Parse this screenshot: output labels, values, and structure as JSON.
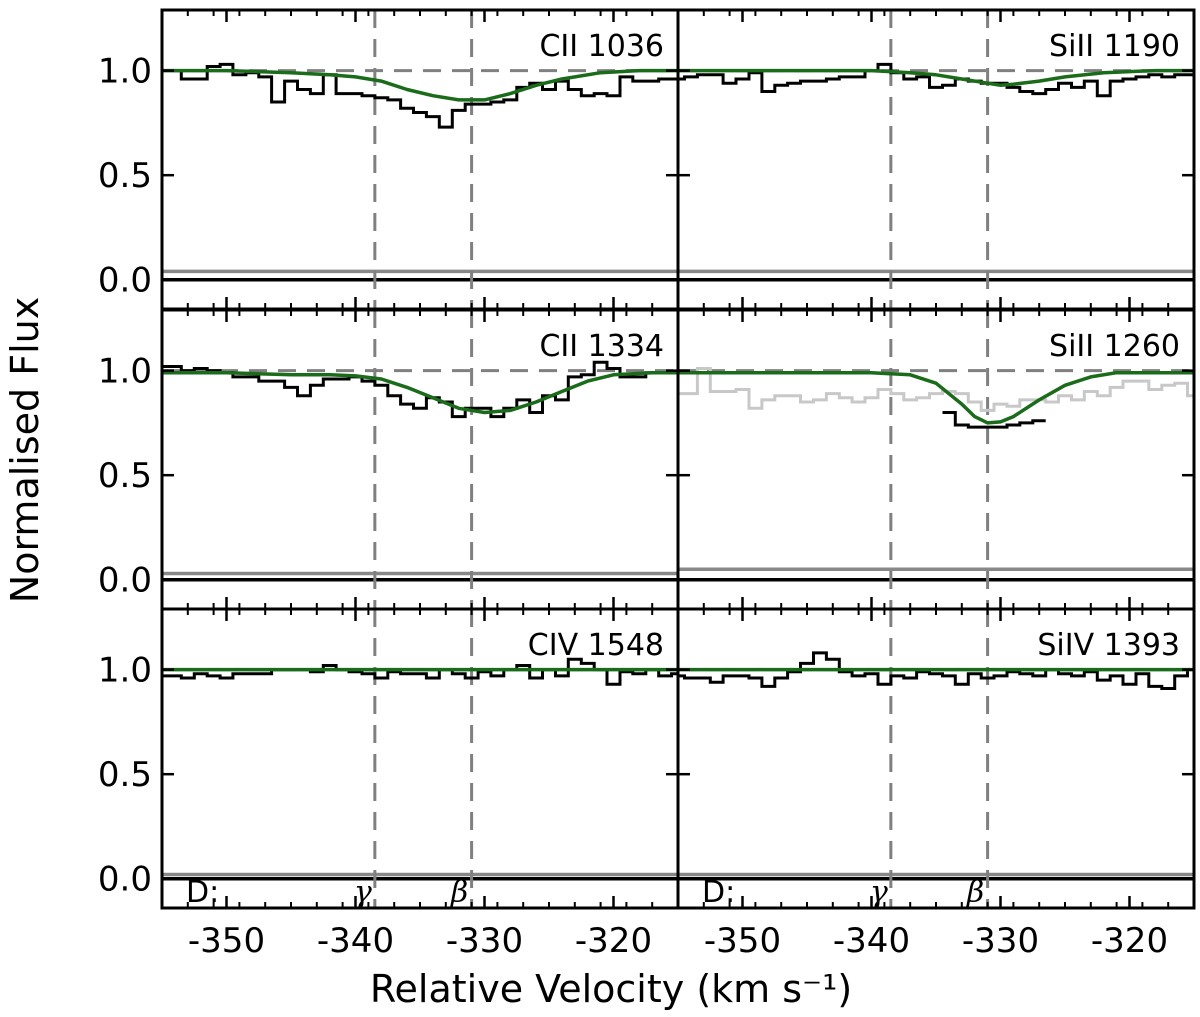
{
  "chart_data": {
    "type": "line",
    "layout": "3x2 shared axes",
    "xlabel": "Relative Velocity (km s⁻¹)",
    "ylabel": "Normalised Flux",
    "xlim": [
      -355,
      -315
    ],
    "ylim": [
      -0.14,
      1.29
    ],
    "xticks": [
      -350,
      -340,
      -330,
      -320
    ],
    "xtick_labels": [
      "-350",
      "-340",
      "-330",
      "-320"
    ],
    "yticks": [
      0.0,
      0.5,
      1.0
    ],
    "ytick_labels": [
      "0.0",
      "0.5",
      "1.0"
    ],
    "continuum_level": 1.0,
    "zero_level": 0.0,
    "components": [
      {
        "label": "γ",
        "velocity": -338.5
      },
      {
        "label": "β",
        "velocity": -331.0
      }
    ],
    "component_row_label": "D:",
    "colors": {
      "data": "#000000",
      "model": "#1a6b1a",
      "error": "#888888",
      "blend": "#c8c8c8",
      "guide": "#808080"
    },
    "panels": [
      {
        "label": "CII 1036",
        "row": 0,
        "col": 0,
        "data_x": [
          -355,
          -354,
          -353,
          -352,
          -351,
          -350,
          -349,
          -348,
          -347,
          -346,
          -345,
          -344,
          -343,
          -342,
          -341,
          -340,
          -339,
          -338,
          -337,
          -336,
          -335,
          -334,
          -333,
          -332,
          -331,
          -330,
          -329,
          -328,
          -327,
          -326,
          -325,
          -324,
          -323,
          -322,
          -321,
          -320,
          -319,
          -318,
          -317,
          -316,
          -315
        ],
        "data_y": [
          1.0,
          1.0,
          0.96,
          0.96,
          1.02,
          1.03,
          0.98,
          0.99,
          0.97,
          0.85,
          0.95,
          0.91,
          0.89,
          0.98,
          0.89,
          0.89,
          0.88,
          0.87,
          0.86,
          0.82,
          0.8,
          0.78,
          0.73,
          0.81,
          0.84,
          0.84,
          0.85,
          0.86,
          0.92,
          0.94,
          0.91,
          0.95,
          0.91,
          0.88,
          0.89,
          0.88,
          0.97,
          0.95,
          0.95,
          0.96,
          0.96
        ],
        "model_x": [
          -355,
          -350,
          -345,
          -342,
          -340,
          -338,
          -336,
          -334,
          -332,
          -330,
          -328,
          -326,
          -324,
          -321,
          -318,
          -315
        ],
        "model_y": [
          1.0,
          1.0,
          0.99,
          0.98,
          0.97,
          0.95,
          0.91,
          0.88,
          0.86,
          0.86,
          0.89,
          0.93,
          0.96,
          0.99,
          1.0,
          1.0
        ],
        "error_y": 0.04
      },
      {
        "label": "SiII 1190",
        "row": 0,
        "col": 1,
        "data_x": [
          -355,
          -354,
          -353,
          -352,
          -351,
          -350,
          -349,
          -348,
          -347,
          -346,
          -345,
          -344,
          -343,
          -342,
          -341,
          -340,
          -339,
          -338,
          -337,
          -336,
          -335,
          -334,
          -333,
          -332,
          -331,
          -330,
          -329,
          -328,
          -327,
          -326,
          -325,
          -324,
          -323,
          -322,
          -321,
          -320,
          -319,
          -318,
          -317,
          -316,
          -315
        ],
        "data_y": [
          0.96,
          0.97,
          0.98,
          0.98,
          0.94,
          0.96,
          0.99,
          0.9,
          0.93,
          0.94,
          0.95,
          0.95,
          0.96,
          0.97,
          0.97,
          1.0,
          1.03,
          0.99,
          0.96,
          0.97,
          0.92,
          0.93,
          0.96,
          0.95,
          0.94,
          0.94,
          0.92,
          0.9,
          0.89,
          0.91,
          0.94,
          0.92,
          0.95,
          0.88,
          0.95,
          0.96,
          0.97,
          0.98,
          0.97,
          0.98,
          0.98
        ],
        "model_x": [
          -355,
          -345,
          -340,
          -337,
          -335,
          -333,
          -331,
          -330,
          -329,
          -327,
          -325,
          -322,
          -318,
          -315
        ],
        "model_y": [
          1.0,
          1.0,
          1.0,
          0.99,
          0.98,
          0.96,
          0.94,
          0.93,
          0.935,
          0.95,
          0.97,
          0.99,
          1.0,
          1.0
        ],
        "error_y": 0.04
      },
      {
        "label": "CII 1334",
        "row": 1,
        "col": 0,
        "data_x": [
          -355,
          -354,
          -353,
          -352,
          -351,
          -350,
          -349,
          -348,
          -347,
          -346,
          -345,
          -344,
          -343,
          -342,
          -341,
          -340,
          -339,
          -338,
          -337,
          -336,
          -335,
          -334,
          -333,
          -332,
          -331,
          -330,
          -329,
          -328,
          -327,
          -326,
          -325,
          -324,
          -323,
          -322,
          -321,
          -320,
          -319,
          -318,
          -317,
          -316,
          -315
        ],
        "data_y": [
          1.02,
          1.02,
          1.0,
          1.01,
          1.0,
          0.99,
          0.97,
          0.97,
          0.95,
          0.95,
          0.92,
          0.88,
          0.93,
          0.96,
          0.96,
          0.97,
          0.95,
          0.93,
          0.88,
          0.84,
          0.82,
          0.87,
          0.85,
          0.78,
          0.82,
          0.82,
          0.78,
          0.82,
          0.86,
          0.8,
          0.88,
          0.86,
          0.97,
          0.98,
          1.04,
          1.01,
          0.97,
          0.97,
          0.99,
          0.99,
          0.99
        ],
        "model_x": [
          -355,
          -350,
          -345,
          -342,
          -340,
          -338,
          -336,
          -334,
          -332,
          -330,
          -328,
          -326,
          -324,
          -322,
          -320,
          -317,
          -315
        ],
        "model_y": [
          0.99,
          0.99,
          0.98,
          0.98,
          0.975,
          0.96,
          0.92,
          0.87,
          0.82,
          0.8,
          0.81,
          0.85,
          0.9,
          0.95,
          0.98,
          0.99,
          0.99
        ],
        "error_y": 0.03
      },
      {
        "label": "SiII 1260",
        "row": 1,
        "col": 1,
        "blend_x": [
          -355,
          -354,
          -353,
          -352,
          -351,
          -350,
          -349,
          -348,
          -347,
          -346,
          -345,
          -344,
          -343,
          -342,
          -341,
          -340,
          -339,
          -338,
          -337,
          -336,
          -335,
          -334,
          -333,
          -332,
          -331,
          -330,
          -329,
          -328,
          -327,
          -326,
          -325,
          -324,
          -323,
          -322,
          -321,
          -320,
          -319,
          -318,
          -317,
          -316,
          -315
        ],
        "blend_y": [
          0.89,
          0.89,
          1.01,
          0.9,
          0.9,
          0.91,
          0.82,
          0.86,
          0.88,
          0.88,
          0.85,
          0.86,
          0.89,
          0.87,
          0.85,
          0.87,
          0.91,
          0.89,
          0.86,
          0.87,
          0.89,
          0.9,
          0.89,
          0.85,
          0.81,
          0.84,
          0.83,
          0.86,
          0.86,
          0.85,
          0.88,
          0.86,
          0.9,
          0.88,
          0.92,
          0.95,
          0.95,
          0.91,
          0.93,
          0.94,
          0.88
        ],
        "data_x": [
          -334,
          -333,
          -332,
          -331,
          -330,
          -329,
          -328,
          -327
        ],
        "data_y": [
          0.8,
          0.74,
          0.73,
          0.73,
          0.73,
          0.74,
          0.75,
          0.76
        ],
        "model_x": [
          -355,
          -345,
          -340,
          -337,
          -335,
          -333,
          -332,
          -331,
          -330,
          -329,
          -327,
          -325,
          -323,
          -321,
          -318,
          -315
        ],
        "model_y": [
          0.99,
          0.99,
          0.99,
          0.98,
          0.94,
          0.84,
          0.78,
          0.75,
          0.755,
          0.78,
          0.86,
          0.93,
          0.97,
          0.99,
          0.99,
          0.99
        ],
        "error_y": 0.05
      },
      {
        "label": "CIV 1548",
        "row": 2,
        "col": 0,
        "data_x": [
          -355,
          -354,
          -353,
          -352,
          -351,
          -350,
          -349,
          -348,
          -347,
          -346,
          -345,
          -344,
          -343,
          -342,
          -341,
          -340,
          -339,
          -338,
          -337,
          -336,
          -335,
          -334,
          -333,
          -332,
          -331,
          -330,
          -329,
          -328,
          -327,
          -326,
          -325,
          -324,
          -323,
          -322,
          -321,
          -320,
          -319,
          -318,
          -317,
          -316,
          -315
        ],
        "data_y": [
          0.97,
          0.97,
          0.96,
          0.98,
          0.97,
          0.96,
          0.98,
          0.98,
          0.98,
          1.0,
          1.0,
          1.0,
          0.99,
          1.02,
          1.0,
          0.99,
          0.98,
          0.96,
          0.99,
          0.98,
          0.98,
          0.96,
          1.0,
          0.98,
          0.96,
          0.99,
          0.97,
          1.0,
          1.02,
          0.96,
          1.0,
          0.97,
          1.05,
          1.03,
          1.0,
          0.93,
          0.99,
          0.98,
          1.0,
          0.97,
          0.98
        ],
        "model_x": [
          -355,
          -340,
          -330,
          -315
        ],
        "model_y": [
          1.0,
          1.0,
          1.0,
          1.0
        ],
        "error_y": 0.02
      },
      {
        "label": "SiIV 1393",
        "row": 2,
        "col": 1,
        "data_x": [
          -355,
          -354,
          -353,
          -352,
          -351,
          -350,
          -349,
          -348,
          -347,
          -346,
          -345,
          -344,
          -343,
          -342,
          -341,
          -340,
          -339,
          -338,
          -337,
          -336,
          -335,
          -334,
          -333,
          -332,
          -331,
          -330,
          -329,
          -328,
          -327,
          -326,
          -325,
          -324,
          -323,
          -322,
          -321,
          -320,
          -319,
          -318,
          -317,
          -316,
          -315
        ],
        "data_y": [
          0.97,
          0.96,
          0.96,
          0.94,
          0.97,
          0.97,
          0.96,
          0.92,
          0.96,
          0.99,
          1.03,
          1.08,
          1.05,
          0.99,
          0.97,
          0.98,
          0.93,
          0.97,
          0.96,
          0.99,
          0.98,
          0.97,
          0.93,
          0.98,
          0.96,
          0.97,
          0.99,
          0.98,
          0.97,
          1.0,
          0.98,
          0.97,
          0.99,
          0.95,
          0.97,
          0.93,
          0.98,
          0.92,
          0.91,
          0.97,
          1.0
        ],
        "model_x": [
          -355,
          -340,
          -330,
          -315
        ],
        "model_y": [
          1.0,
          1.0,
          1.0,
          1.0
        ],
        "error_y": 0.02
      }
    ]
  }
}
